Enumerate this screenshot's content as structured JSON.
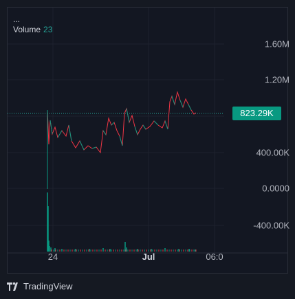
{
  "legend": {
    "line1": "...",
    "volume_label": "Volume",
    "volume_value": "23"
  },
  "price_axis": {
    "labels": [
      "1.60M",
      "1.20M",
      "400.00K",
      "0.0000",
      "-400.00K"
    ]
  },
  "last_price": "823.29K",
  "time_axis": {
    "labels": [
      "24",
      "Jul",
      "06:0"
    ]
  },
  "brand": "TradingView",
  "colors": {
    "up": "#089981",
    "down": "#f23645",
    "grid": "#1e222d",
    "price_line": "#26a69a"
  }
}
